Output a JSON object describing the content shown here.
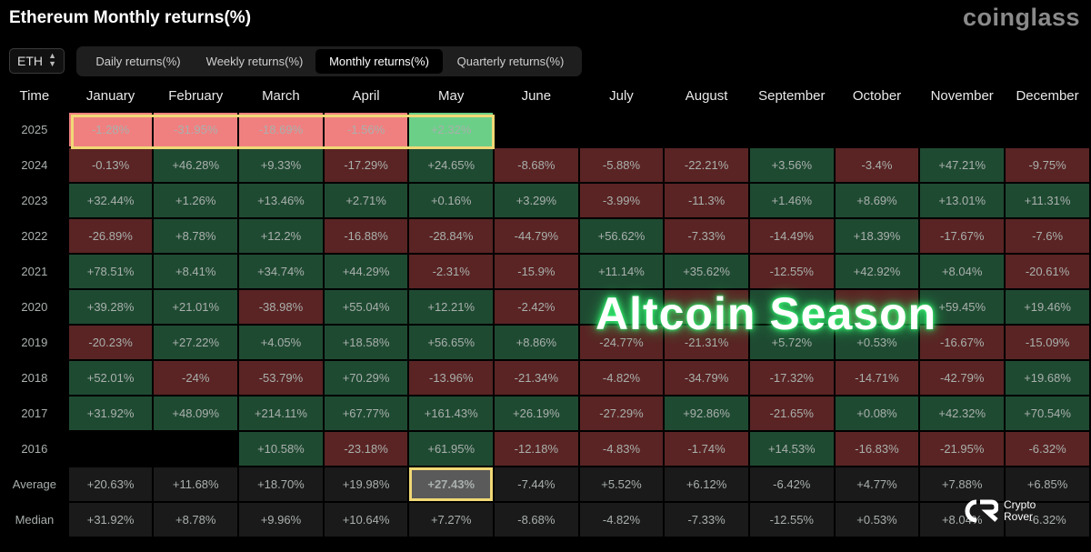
{
  "header": {
    "title": "Ethereum Monthly returns(%)",
    "brand": "coinglass"
  },
  "coin_select": {
    "value": "ETH"
  },
  "tabs": [
    {
      "label": "Daily returns(%)",
      "active": false
    },
    {
      "label": "Weekly returns(%)",
      "active": false
    },
    {
      "label": "Monthly returns(%)",
      "active": true
    },
    {
      "label": "Quarterly returns(%)",
      "active": false
    }
  ],
  "overlay": {
    "text": "Altcoin Season",
    "glow_color": "#38ff7a"
  },
  "watermark": {
    "line1": "Crypto",
    "line2": "Rover"
  },
  "colors": {
    "positive_cell": "#1f4a32",
    "negative_cell": "#5a2424",
    "highlight_positive": "#6bcf88",
    "highlight_negative": "#f08080",
    "highlight_border": "#f0d875"
  },
  "chart_data": {
    "type": "table",
    "title": "Ethereum Monthly returns(%)",
    "first_column_header": "Time",
    "columns": [
      "January",
      "February",
      "March",
      "April",
      "May",
      "June",
      "July",
      "August",
      "September",
      "October",
      "November",
      "December"
    ],
    "rows": [
      {
        "label": "2025",
        "values": [
          "-1.28%",
          "-31.95%",
          "-18.69%",
          "-1.56%",
          "+2.32%",
          "",
          "",
          "",
          "",
          "",
          "",
          ""
        ]
      },
      {
        "label": "2024",
        "values": [
          "-0.13%",
          "+46.28%",
          "+9.33%",
          "-17.29%",
          "+24.65%",
          "-8.68%",
          "-5.88%",
          "-22.21%",
          "+3.56%",
          "-3.4%",
          "+47.21%",
          "-9.75%"
        ]
      },
      {
        "label": "2023",
        "values": [
          "+32.44%",
          "+1.26%",
          "+13.46%",
          "+2.71%",
          "+0.16%",
          "+3.29%",
          "-3.99%",
          "-11.3%",
          "+1.46%",
          "+8.69%",
          "+13.01%",
          "+11.31%"
        ]
      },
      {
        "label": "2022",
        "values": [
          "-26.89%",
          "+8.78%",
          "+12.2%",
          "-16.88%",
          "-28.84%",
          "-44.79%",
          "+56.62%",
          "-7.33%",
          "-14.49%",
          "+18.39%",
          "-17.67%",
          "-7.6%"
        ]
      },
      {
        "label": "2021",
        "values": [
          "+78.51%",
          "+8.41%",
          "+34.74%",
          "+44.29%",
          "-2.31%",
          "-15.9%",
          "+11.14%",
          "+35.62%",
          "-12.55%",
          "+42.92%",
          "+8.04%",
          "-20.61%"
        ]
      },
      {
        "label": "2020",
        "values": [
          "+39.28%",
          "+21.01%",
          "-38.98%",
          "+55.04%",
          "+12.21%",
          "-2.42%",
          "",
          "",
          "",
          "",
          "+59.45%",
          "+19.46%"
        ]
      },
      {
        "label": "2019",
        "values": [
          "-20.23%",
          "+27.22%",
          "+4.05%",
          "+18.58%",
          "+56.65%",
          "+8.86%",
          "-24.77%",
          "-21.31%",
          "+5.72%",
          "+0.53%",
          "-16.67%",
          "-15.09%"
        ]
      },
      {
        "label": "2018",
        "values": [
          "+52.01%",
          "-24%",
          "-53.79%",
          "+70.29%",
          "-13.96%",
          "-21.34%",
          "-4.82%",
          "-34.79%",
          "-17.32%",
          "-14.71%",
          "-42.79%",
          "+19.68%"
        ]
      },
      {
        "label": "2017",
        "values": [
          "+31.92%",
          "+48.09%",
          "+214.11%",
          "+67.77%",
          "+161.43%",
          "+26.19%",
          "-27.29%",
          "+92.86%",
          "-21.65%",
          "+0.08%",
          "+42.32%",
          "+70.54%"
        ]
      },
      {
        "label": "2016",
        "values": [
          "",
          "",
          "+10.58%",
          "-23.18%",
          "+61.95%",
          "-12.18%",
          "-4.83%",
          "-1.74%",
          "+14.53%",
          "-16.83%",
          "-21.95%",
          "-6.32%"
        ]
      },
      {
        "label": "Average",
        "values": [
          "+20.63%",
          "+11.68%",
          "+18.70%",
          "+19.98%",
          "+27.43%",
          "-7.44%",
          "+5.52%",
          "+6.12%",
          "-6.42%",
          "+4.77%",
          "+7.88%",
          "+6.85%"
        ]
      },
      {
        "label": "Median",
        "values": [
          "+31.92%",
          "+8.78%",
          "+9.96%",
          "+10.64%",
          "+7.27%",
          "-8.68%",
          "-4.82%",
          "-7.33%",
          "-12.55%",
          "+0.53%",
          "+8.04%",
          "-6.32%"
        ]
      }
    ],
    "highlighted": {
      "year_row": "2025",
      "average_cell": "May"
    }
  }
}
